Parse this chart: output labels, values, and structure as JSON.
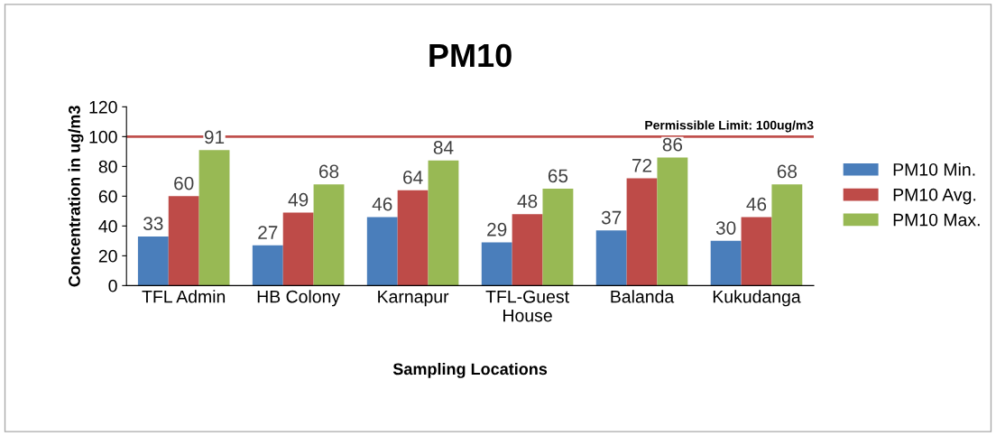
{
  "chart_data": {
    "type": "bar",
    "title": "PM10",
    "xlabel": "Sampling Locations",
    "ylabel": "Concentration in ug/m3",
    "categories": [
      "TFL Admin",
      "HB Colony",
      "Karnapur",
      "TFL-Guest\nHouse",
      "Balanda",
      "Kukudanga"
    ],
    "series": [
      {
        "name": "PM10 Min.",
        "color": "#4a7ebb",
        "values": [
          33,
          27,
          46,
          29,
          37,
          30
        ]
      },
      {
        "name": "PM10 Avg.",
        "color": "#be4b48",
        "values": [
          60,
          49,
          64,
          48,
          72,
          46
        ]
      },
      {
        "name": "PM10 Max.",
        "color": "#98b954",
        "values": [
          91,
          68,
          84,
          65,
          86,
          68
        ]
      }
    ],
    "ylim": [
      0,
      120
    ],
    "yticks": [
      0,
      20,
      40,
      60,
      80,
      100,
      120
    ],
    "grid": false,
    "legend": "right",
    "data_labels": true,
    "ref_lines": [
      {
        "axis": "y",
        "value": 100,
        "label": "Permissible Limit: 100ug/m3",
        "color": "#c0504d"
      }
    ]
  }
}
